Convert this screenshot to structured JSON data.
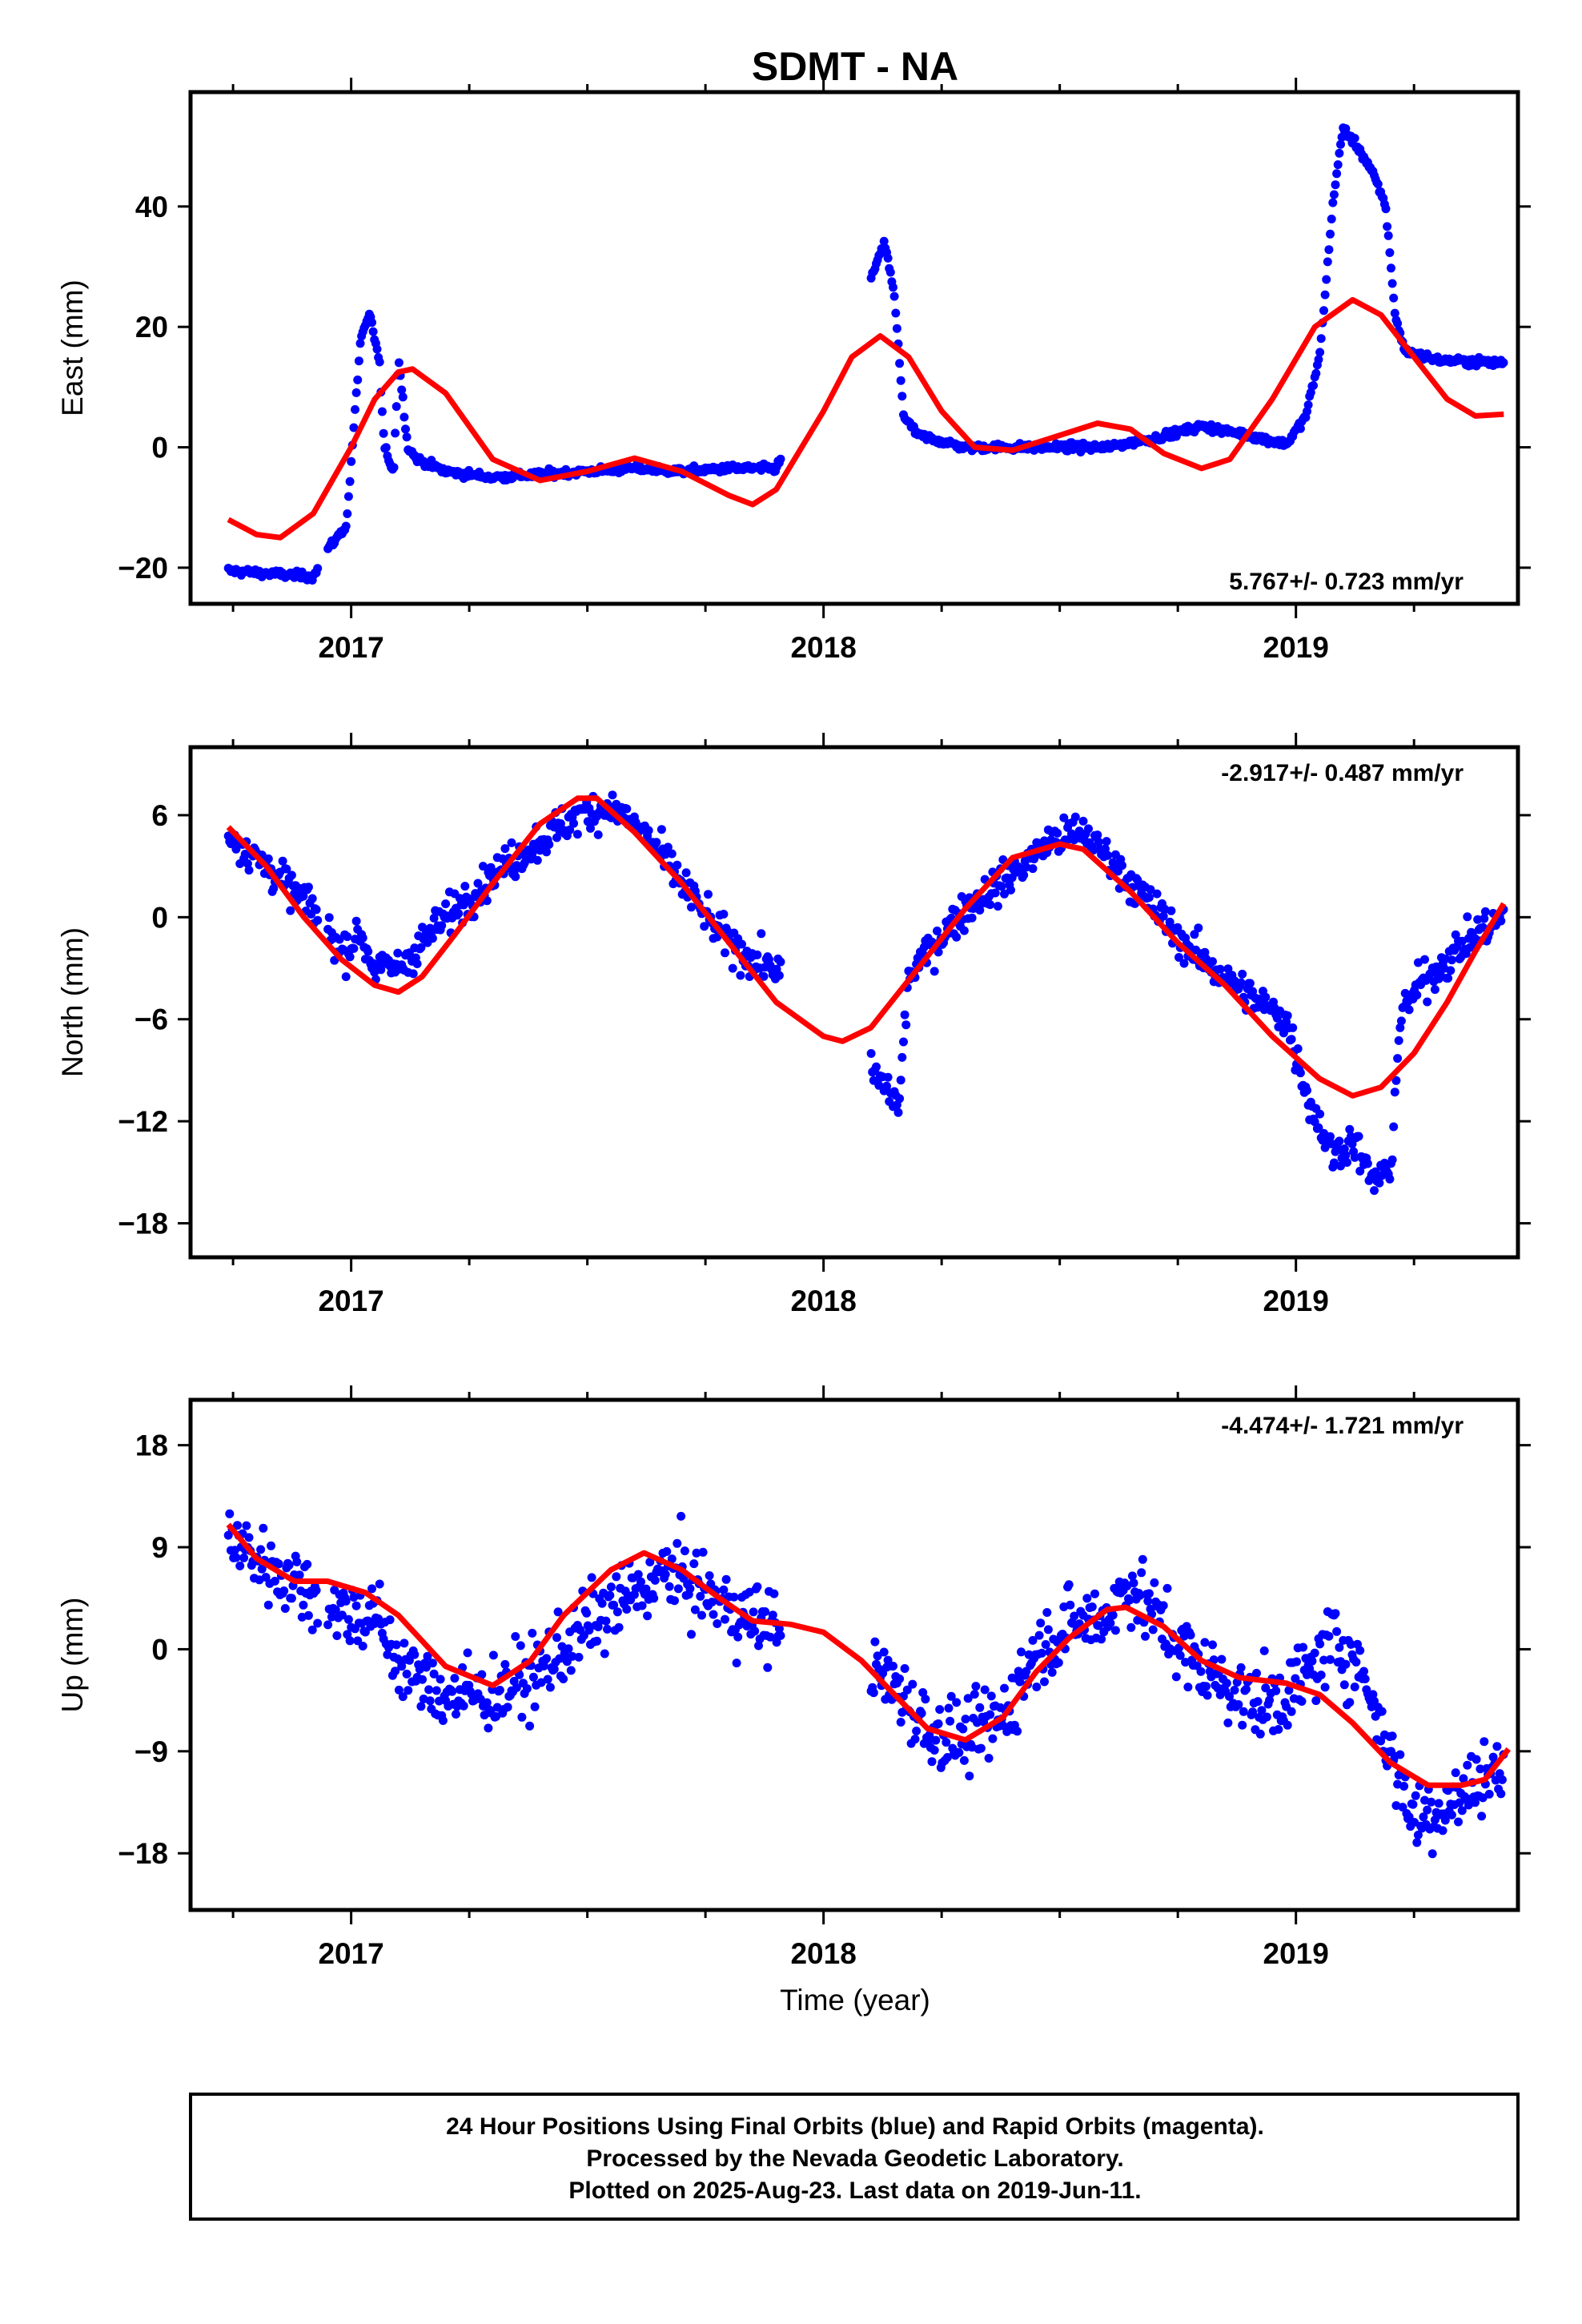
{
  "title": "SDMT - NA",
  "xlabel": "Time (year)",
  "footer": {
    "line1": "24 Hour Positions Using Final Orbits (blue) and Rapid Orbits (magenta).",
    "line2": "Processed by the Nevada Geodetic Laboratory.",
    "line3": "Plotted on 2025-Aug-23. Last data on 2019-Jun-11."
  },
  "colors": {
    "final_orbits": "#0000ff",
    "model_fit": "#ff0000",
    "frame": "#000000"
  },
  "chart_data": [
    {
      "type": "scatter",
      "component": "east",
      "ylabel": "East (mm)",
      "rate_label": "5.767+/- 0.723 mm/yr",
      "rate_position": "bottom-right",
      "xlim": [
        2016.66,
        2019.47
      ],
      "ylim": [
        -26,
        59
      ],
      "yticks": [
        -20,
        0,
        20,
        40
      ],
      "ytick_labels": [
        "−20",
        "0",
        "20",
        "40"
      ],
      "xticks": [
        2017,
        2018,
        2019
      ],
      "xtick_labels": [
        "2017",
        "2018",
        "2019"
      ],
      "series": [
        {
          "kind": "points",
          "color": "#0000ff",
          "jitter": 0.8,
          "trend": [
            [
              2016.74,
              -20.5
            ],
            [
              2016.92,
              -21.5
            ],
            [
              2016.95,
              -17
            ],
            [
              2016.99,
              -13
            ],
            [
              2017.02,
              18
            ],
            [
              2017.04,
              22
            ],
            [
              2017.06,
              14
            ],
            [
              2017.07,
              0
            ],
            [
              2017.09,
              -4
            ],
            [
              2017.1,
              15
            ],
            [
              2017.12,
              0
            ],
            [
              2017.14,
              -2
            ],
            [
              2017.2,
              -4
            ],
            [
              2017.3,
              -5
            ],
            [
              2017.4,
              -4.5
            ],
            [
              2017.5,
              -4
            ],
            [
              2017.6,
              -3.5
            ],
            [
              2017.7,
              -4
            ],
            [
              2017.8,
              -3.5
            ],
            [
              2017.9,
              -3.5
            ],
            [
              2018.1,
              28
            ],
            [
              2018.13,
              34
            ],
            [
              2018.15,
              25
            ],
            [
              2018.17,
              5
            ],
            [
              2018.2,
              2
            ],
            [
              2018.3,
              0
            ],
            [
              2018.4,
              0
            ],
            [
              2018.5,
              0
            ],
            [
              2018.6,
              0
            ],
            [
              2018.7,
              1.5
            ],
            [
              2018.8,
              3.5
            ],
            [
              2018.9,
              2
            ],
            [
              2018.98,
              0.5
            ],
            [
              2019.02,
              5
            ],
            [
              2019.05,
              15
            ],
            [
              2019.08,
              42
            ],
            [
              2019.1,
              53
            ],
            [
              2019.13,
              50
            ],
            [
              2019.16,
              46
            ],
            [
              2019.19,
              40
            ],
            [
              2019.21,
              22
            ],
            [
              2019.23,
              16
            ],
            [
              2019.3,
              14.5
            ],
            [
              2019.44,
              14
            ]
          ]
        },
        {
          "kind": "line",
          "color": "#ff0000",
          "points": [
            [
              2016.74,
              -12
            ],
            [
              2016.8,
              -14.5
            ],
            [
              2016.85,
              -15
            ],
            [
              2016.92,
              -11
            ],
            [
              2017.0,
              0
            ],
            [
              2017.05,
              8
            ],
            [
              2017.1,
              12.5
            ],
            [
              2017.13,
              13
            ],
            [
              2017.2,
              9
            ],
            [
              2017.3,
              -2
            ],
            [
              2017.4,
              -5.5
            ],
            [
              2017.5,
              -4
            ],
            [
              2017.6,
              -1.8
            ],
            [
              2017.7,
              -4
            ],
            [
              2017.8,
              -8
            ],
            [
              2017.85,
              -9.5
            ],
            [
              2017.9,
              -7
            ],
            [
              2018.0,
              6
            ],
            [
              2018.06,
              15
            ],
            [
              2018.12,
              18.5
            ],
            [
              2018.18,
              15
            ],
            [
              2018.25,
              6
            ],
            [
              2018.32,
              0
            ],
            [
              2018.4,
              -0.5
            ],
            [
              2018.48,
              1.5
            ],
            [
              2018.58,
              4
            ],
            [
              2018.65,
              3
            ],
            [
              2018.72,
              -1
            ],
            [
              2018.8,
              -3.5
            ],
            [
              2018.86,
              -2
            ],
            [
              2018.95,
              8
            ],
            [
              2019.04,
              20
            ],
            [
              2019.12,
              24.5
            ],
            [
              2019.18,
              22
            ],
            [
              2019.25,
              15
            ],
            [
              2019.32,
              8
            ],
            [
              2019.38,
              5.2
            ],
            [
              2019.44,
              5.5
            ]
          ]
        }
      ]
    },
    {
      "type": "scatter",
      "component": "north",
      "ylabel": "North (mm)",
      "rate_label": "-2.917+/- 0.487 mm/yr",
      "rate_position": "top-right",
      "xlim": [
        2016.66,
        2019.47
      ],
      "ylim": [
        -20,
        10
      ],
      "yticks": [
        -18,
        -12,
        -6,
        0,
        6
      ],
      "ytick_labels": [
        "−18",
        "−12",
        "−6",
        "0",
        "6"
      ],
      "xticks": [
        2017,
        2018,
        2019
      ],
      "xtick_labels": [
        "2017",
        "2018",
        "2019"
      ],
      "series": [
        {
          "kind": "points",
          "color": "#0000ff",
          "jitter": 1.4,
          "trend": [
            [
              2016.74,
              5
            ],
            [
              2016.8,
              3.5
            ],
            [
              2016.86,
              2
            ],
            [
              2016.92,
              0.5
            ],
            [
              2016.98,
              -2
            ],
            [
              2017.02,
              -1
            ],
            [
              2017.05,
              -3
            ],
            [
              2017.1,
              -3
            ],
            [
              2017.15,
              -1.5
            ],
            [
              2017.2,
              0
            ],
            [
              2017.3,
              2.5
            ],
            [
              2017.4,
              4.5
            ],
            [
              2017.48,
              6
            ],
            [
              2017.55,
              6.5
            ],
            [
              2017.62,
              5
            ],
            [
              2017.7,
              2
            ],
            [
              2017.78,
              -1
            ],
            [
              2017.85,
              -2.5
            ],
            [
              2017.9,
              -3
            ],
            [
              2018.13,
              -10
            ],
            [
              2018.16,
              -11
            ],
            [
              2018.18,
              -3.5
            ],
            [
              2018.22,
              -2
            ],
            [
              2018.3,
              0.5
            ],
            [
              2018.4,
              2.5
            ],
            [
              2018.48,
              4.5
            ],
            [
              2018.55,
              5
            ],
            [
              2018.62,
              3
            ],
            [
              2018.7,
              0.5
            ],
            [
              2018.78,
              -2
            ],
            [
              2018.85,
              -3.5
            ],
            [
              2018.92,
              -5
            ],
            [
              2018.98,
              -6
            ],
            [
              2019.03,
              -11
            ],
            [
              2019.08,
              -14
            ],
            [
              2019.12,
              -13
            ],
            [
              2019.16,
              -15.5
            ],
            [
              2019.2,
              -15
            ],
            [
              2019.22,
              -6
            ],
            [
              2019.26,
              -4
            ],
            [
              2019.32,
              -2.5
            ],
            [
              2019.38,
              -1
            ],
            [
              2019.44,
              0
            ]
          ]
        },
        {
          "kind": "line",
          "color": "#ff0000",
          "points": [
            [
              2016.74,
              5.3
            ],
            [
              2016.82,
              3
            ],
            [
              2016.9,
              0
            ],
            [
              2016.98,
              -2.5
            ],
            [
              2017.05,
              -4
            ],
            [
              2017.1,
              -4.4
            ],
            [
              2017.15,
              -3.5
            ],
            [
              2017.22,
              -1
            ],
            [
              2017.3,
              2
            ],
            [
              2017.4,
              5.5
            ],
            [
              2017.48,
              7
            ],
            [
              2017.52,
              7
            ],
            [
              2017.6,
              5
            ],
            [
              2017.7,
              2
            ],
            [
              2017.8,
              -1.5
            ],
            [
              2017.9,
              -5
            ],
            [
              2018.0,
              -7
            ],
            [
              2018.04,
              -7.3
            ],
            [
              2018.1,
              -6.5
            ],
            [
              2018.2,
              -3
            ],
            [
              2018.3,
              0.5
            ],
            [
              2018.4,
              3.5
            ],
            [
              2018.5,
              4.3
            ],
            [
              2018.55,
              4
            ],
            [
              2018.65,
              1.5
            ],
            [
              2018.75,
              -1.5
            ],
            [
              2018.85,
              -4
            ],
            [
              2018.95,
              -7
            ],
            [
              2019.05,
              -9.5
            ],
            [
              2019.12,
              -10.5
            ],
            [
              2019.18,
              -10
            ],
            [
              2019.25,
              -8
            ],
            [
              2019.32,
              -5
            ],
            [
              2019.38,
              -2
            ],
            [
              2019.44,
              0.8
            ]
          ]
        }
      ]
    },
    {
      "type": "scatter",
      "component": "up",
      "ylabel": "Up (mm)",
      "rate_label": "-4.474+/- 1.721 mm/yr",
      "rate_position": "top-right",
      "xlim": [
        2016.66,
        2019.47
      ],
      "ylim": [
        -23,
        22
      ],
      "yticks": [
        -18,
        -9,
        0,
        9,
        18
      ],
      "ytick_labels": [
        "−18",
        "−9",
        "0",
        "9",
        "18"
      ],
      "xticks": [
        2017,
        2018,
        2019
      ],
      "xtick_labels": [
        "2017",
        "2018",
        "2019"
      ],
      "series": [
        {
          "kind": "points",
          "color": "#0000ff",
          "jitter": 4.2,
          "trend": [
            [
              2016.74,
              10
            ],
            [
              2016.8,
              8
            ],
            [
              2016.88,
              6
            ],
            [
              2016.95,
              4
            ],
            [
              2017.0,
              3
            ],
            [
              2017.05,
              3
            ],
            [
              2017.1,
              -1
            ],
            [
              2017.15,
              -3
            ],
            [
              2017.2,
              -4
            ],
            [
              2017.3,
              -4
            ],
            [
              2017.4,
              -2
            ],
            [
              2017.5,
              2
            ],
            [
              2017.6,
              5
            ],
            [
              2017.68,
              7
            ],
            [
              2017.75,
              5
            ],
            [
              2017.82,
              3
            ],
            [
              2017.9,
              2
            ],
            [
              2018.15,
              -3
            ],
            [
              2018.22,
              -7
            ],
            [
              2018.3,
              -8
            ],
            [
              2018.38,
              -6
            ],
            [
              2018.45,
              0
            ],
            [
              2018.52,
              2
            ],
            [
              2018.6,
              3
            ],
            [
              2018.65,
              6
            ],
            [
              2018.7,
              3
            ],
            [
              2018.78,
              -1
            ],
            [
              2018.85,
              -3
            ],
            [
              2018.92,
              -5
            ],
            [
              2018.98,
              -4
            ],
            [
              2019.03,
              -2
            ],
            [
              2019.08,
              1
            ],
            [
              2019.14,
              -2
            ],
            [
              2019.2,
              -9
            ],
            [
              2019.25,
              -15
            ],
            [
              2019.3,
              -14
            ],
            [
              2019.35,
              -13
            ],
            [
              2019.4,
              -11
            ],
            [
              2019.44,
              -11
            ]
          ]
        },
        {
          "kind": "line",
          "color": "#ff0000",
          "points": [
            [
              2016.74,
              11
            ],
            [
              2016.8,
              8
            ],
            [
              2016.88,
              6
            ],
            [
              2016.95,
              6
            ],
            [
              2017.03,
              5
            ],
            [
              2017.1,
              3
            ],
            [
              2017.2,
              -1.5
            ],
            [
              2017.3,
              -3.2
            ],
            [
              2017.38,
              -1
            ],
            [
              2017.45,
              3
            ],
            [
              2017.55,
              7
            ],
            [
              2017.62,
              8.5
            ],
            [
              2017.7,
              7
            ],
            [
              2017.78,
              4.5
            ],
            [
              2017.85,
              2.5
            ],
            [
              2017.93,
              2.2
            ],
            [
              2018.0,
              1.5
            ],
            [
              2018.08,
              -1
            ],
            [
              2018.15,
              -4
            ],
            [
              2018.22,
              -7
            ],
            [
              2018.3,
              -8
            ],
            [
              2018.38,
              -6
            ],
            [
              2018.45,
              -2
            ],
            [
              2018.52,
              1
            ],
            [
              2018.6,
              3.5
            ],
            [
              2018.64,
              3.7
            ],
            [
              2018.72,
              2
            ],
            [
              2018.8,
              -1
            ],
            [
              2018.88,
              -2.5
            ],
            [
              2018.98,
              -3
            ],
            [
              2019.05,
              -4
            ],
            [
              2019.12,
              -6.5
            ],
            [
              2019.2,
              -10
            ],
            [
              2019.28,
              -12
            ],
            [
              2019.35,
              -12
            ],
            [
              2019.4,
              -11.5
            ],
            [
              2019.45,
              -8.8
            ]
          ]
        }
      ]
    }
  ]
}
